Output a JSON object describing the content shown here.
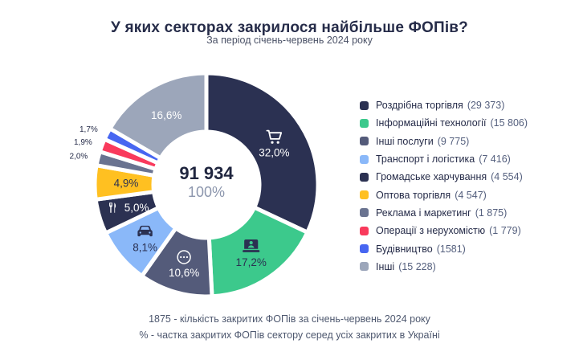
{
  "chart_data": {
    "type": "pie",
    "variant": "donut",
    "title": "У яких секторах закрилося найбільше ФОПів?",
    "subtitle": "За період січень-червень 2024 року",
    "center": {
      "value": "91 934",
      "percent": "100%"
    },
    "legend_position": "right",
    "slices": [
      {
        "label": "Роздрібна торгівля",
        "count": "29 373",
        "pct": 32.0,
        "pct_label": "32,0%",
        "color": "#2B3152",
        "text_color": "#FFFFFF",
        "icon": "cart-icon"
      },
      {
        "label": "Інформаційні технології",
        "count": "15 806",
        "pct": 17.2,
        "pct_label": "17,2%",
        "color": "#3CC98C",
        "text_color": "#2B3152",
        "icon": "laptop-icon"
      },
      {
        "label": "Інші послуги",
        "count": "9 775",
        "pct": 10.6,
        "pct_label": "10,6%",
        "color": "#545B7A",
        "text_color": "#FFFFFF",
        "icon": "ellipsis-icon"
      },
      {
        "label": "Транспорт і логістика",
        "count": "7 416",
        "pct": 8.1,
        "pct_label": "8,1%",
        "color": "#8AB8F9",
        "text_color": "#2B3152",
        "icon": "car-icon"
      },
      {
        "label": "Громадське харчування",
        "count": "4 554",
        "pct": 5.0,
        "pct_label": "5,0%",
        "color": "#2B3152",
        "text_color": "#FFFFFF",
        "icon": "utensils-icon"
      },
      {
        "label": "Оптова торгівля",
        "count": "4 547",
        "pct": 4.9,
        "pct_label": "4,9%",
        "color": "#FFC021",
        "text_color": "#2B3152"
      },
      {
        "label": "Реклама і маркетинг",
        "count": "1 875",
        "pct": 2.0,
        "pct_label": "2,0%",
        "color": "#6A7390",
        "text_color": "#262C49"
      },
      {
        "label": "Операції з нерухомістю",
        "count": "1 779",
        "pct": 1.9,
        "pct_label": "1,9%",
        "color": "#F93A5C",
        "text_color": "#262C49"
      },
      {
        "label": "Будівництво",
        "count": "1581",
        "pct": 1.7,
        "pct_label": "1,7%",
        "color": "#4766F1",
        "text_color": "#262C49"
      },
      {
        "label": "Інші",
        "count": "15 228",
        "pct": 16.6,
        "pct_label": "16,6%",
        "color": "#9CA6BA",
        "text_color": "#FFFFFF"
      }
    ],
    "footnotes": [
      "1875 - кількість закритих ФОПів за січень-червень 2024 року",
      "% - частка закритих ФОПів сектору серед усіх закритих в Україні"
    ]
  }
}
